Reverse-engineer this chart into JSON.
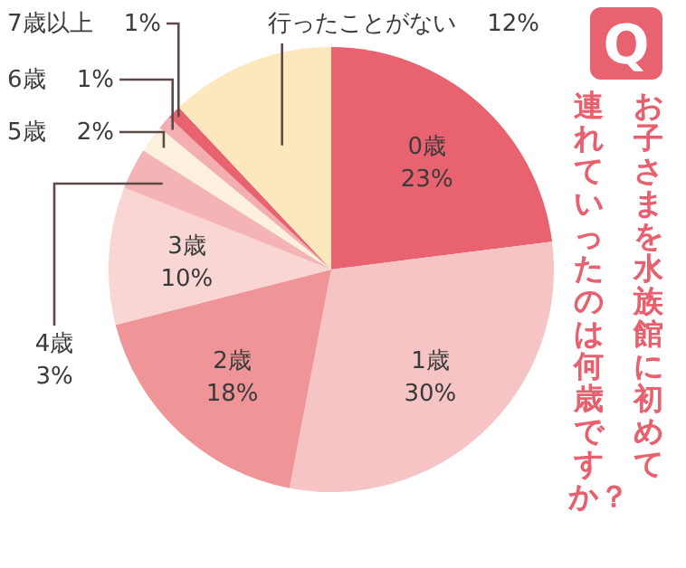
{
  "chart_data": {
    "type": "pie",
    "title": "お子さまを水族館に初めて連れていったのは何歳ですか？",
    "categories": [
      "0歳",
      "1歳",
      "2歳",
      "3歳",
      "4歳",
      "5歳",
      "6歳",
      "7歳以上",
      "行ったことがない"
    ],
    "values": [
      23,
      30,
      18,
      10,
      3,
      2,
      1,
      1,
      12
    ],
    "value_labels": [
      "23%",
      "30%",
      "18%",
      "10%",
      "3%",
      "2%",
      "1%",
      "1%",
      "12%"
    ],
    "colors": [
      "#e8636f",
      "#f6c4c5",
      "#ef9598",
      "#f9d5d4",
      "#f4b3b4",
      "#fdf0dc",
      "#f2aeb1",
      "#e8636f",
      "#fde7bd"
    ],
    "annotations": [
      "Q"
    ]
  }
}
